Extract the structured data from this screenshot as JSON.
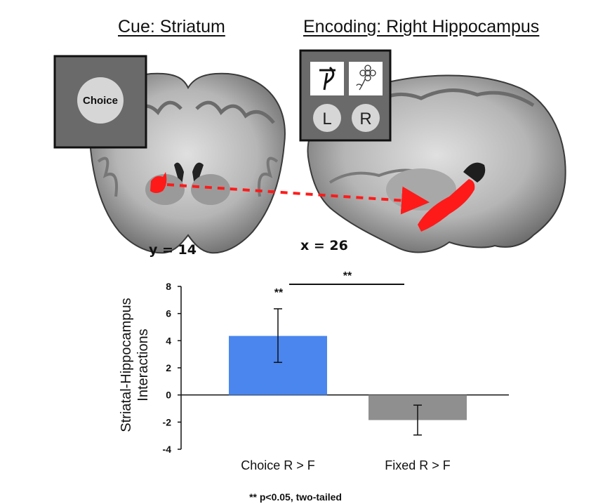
{
  "panels": {
    "left_title": "Cue: Striatum",
    "right_title": "Encoding: Right Hippocampus",
    "left_coord": "y = 14",
    "right_coord": "x = 26",
    "cue_box_label": "Choice",
    "encoding_box_left": "L",
    "encoding_box_right": "R"
  },
  "colors": {
    "choice_bar": "#4a86ee",
    "fixed_bar": "#8f8f8f",
    "activation": "#ff1a1a"
  },
  "chart_data": {
    "type": "bar",
    "categories": [
      "Choice R > F",
      "Fixed R > F"
    ],
    "values": [
      4.35,
      -1.85
    ],
    "error_bars": [
      [
        2.4,
        6.35
      ],
      [
        -2.95,
        -0.75
      ]
    ],
    "ylabel": "Striatal-Hippocampus Interactions",
    "ylim": [
      -4,
      8
    ],
    "yticks": [
      "8",
      "6",
      "4",
      "2",
      "0",
      "-2",
      "-4"
    ],
    "yticks_values": [
      8,
      6,
      4,
      2,
      0,
      -2,
      -4
    ],
    "bar_sig": "**",
    "pair_sig": "**",
    "grid": false
  },
  "footnote": "** p<0.05, two-tailed"
}
